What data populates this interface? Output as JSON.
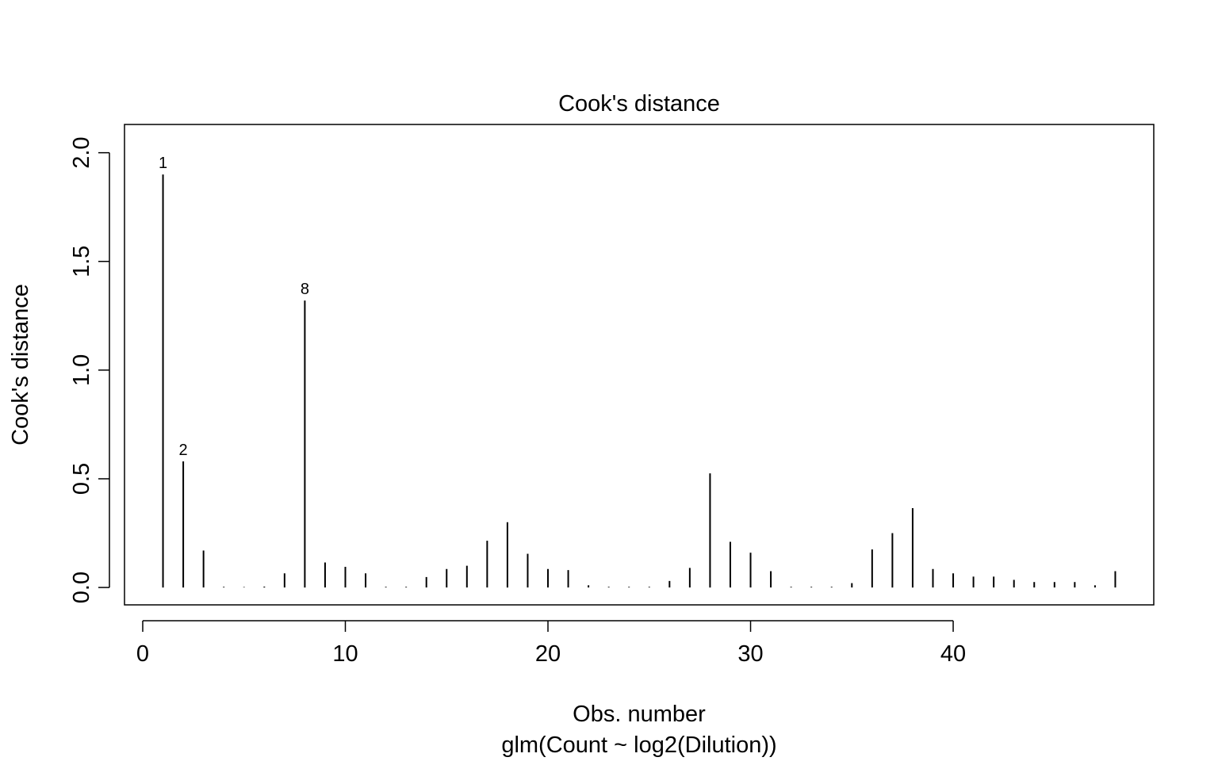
{
  "chart_data": {
    "type": "bar",
    "title": "Cook's distance",
    "xlabel": "Obs. number",
    "subtitle": "glm(Count ~ log2(Dilution))",
    "ylabel": "Cook's distance",
    "xlim": [
      -0.9,
      49.9
    ],
    "ylim": [
      -0.08,
      2.13
    ],
    "x_ticks": [
      0,
      10,
      20,
      30,
      40
    ],
    "x_tick_labels": [
      "0",
      "10",
      "20",
      "30",
      "40"
    ],
    "y_ticks": [
      0.0,
      0.5,
      1.0,
      1.5,
      2.0
    ],
    "y_tick_labels": [
      "0.0",
      "0.5",
      "1.0",
      "1.5",
      "2.0"
    ],
    "grid": false,
    "x": [
      1,
      2,
      3,
      4,
      5,
      6,
      7,
      8,
      9,
      10,
      11,
      12,
      13,
      14,
      15,
      16,
      17,
      18,
      19,
      20,
      21,
      22,
      23,
      24,
      25,
      26,
      27,
      28,
      29,
      30,
      31,
      32,
      33,
      34,
      35,
      36,
      37,
      38,
      39,
      40,
      41,
      42,
      43,
      44,
      45,
      46,
      47,
      48
    ],
    "values": [
      1.9,
      0.58,
      0.17,
      0.003,
      0.002,
      0.004,
      0.065,
      1.32,
      0.115,
      0.095,
      0.065,
      0.003,
      0.003,
      0.048,
      0.085,
      0.1,
      0.215,
      0.3,
      0.155,
      0.085,
      0.08,
      0.01,
      0.003,
      0.003,
      0.003,
      0.03,
      0.09,
      0.525,
      0.21,
      0.16,
      0.075,
      0.003,
      0.003,
      0.003,
      0.02,
      0.175,
      0.25,
      0.365,
      0.085,
      0.065,
      0.05,
      0.05,
      0.035,
      0.025,
      0.025,
      0.025,
      0.01,
      0.075
    ],
    "labels": [
      {
        "x": 1,
        "text": "1"
      },
      {
        "x": 2,
        "text": "2"
      },
      {
        "x": 8,
        "text": "8"
      }
    ]
  }
}
